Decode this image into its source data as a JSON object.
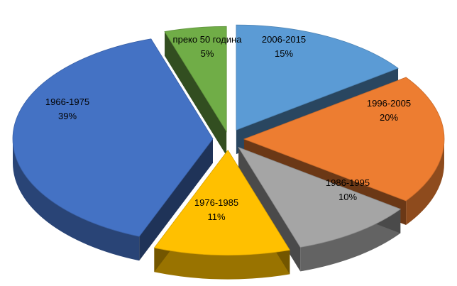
{
  "chart_data": {
    "type": "pie",
    "title": "",
    "slices": [
      {
        "label": "2006-2015",
        "value": 15,
        "value_label": "15%",
        "color": "#5b9bd5"
      },
      {
        "label": "1996-2005",
        "value": 20,
        "value_label": "20%",
        "color": "#ed7d31"
      },
      {
        "label": "1986-1995",
        "value": 10,
        "value_label": "10%",
        "color": "#a5a5a5"
      },
      {
        "label": "1976-1985",
        "value": 11,
        "value_label": "11%",
        "color": "#ffc000"
      },
      {
        "label": "1966-1975",
        "value": 39,
        "value_label": "39%",
        "color": "#4472c4"
      },
      {
        "label": "преко 50 година",
        "value": 5,
        "value_label": "5%",
        "color": "#70ad47"
      }
    ],
    "style": "3d-exploded",
    "legend": "none"
  }
}
